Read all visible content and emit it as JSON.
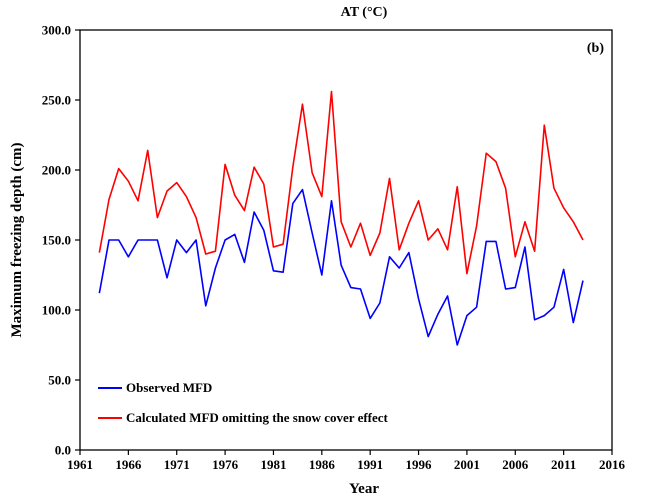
{
  "chart_data": {
    "type": "line",
    "title": "AT (°C)",
    "panel_label": "(b)",
    "xlabel": "Year",
    "ylabel": "Maximum freezing depth (cm)",
    "xlim": [
      1961,
      2016
    ],
    "ylim": [
      0,
      300
    ],
    "x_ticks": [
      1961,
      1966,
      1971,
      1976,
      1981,
      1986,
      1991,
      1996,
      2001,
      2006,
      2011,
      2016
    ],
    "y_ticks": [
      0,
      50,
      100,
      150,
      200,
      250,
      300
    ],
    "y_tick_labels": [
      "0.0",
      "50.0",
      "100.0",
      "150.0",
      "200.0",
      "250.0",
      "300.0"
    ],
    "grid": false,
    "legend_position": "bottom-left",
    "x": [
      1963,
      1964,
      1965,
      1966,
      1967,
      1968,
      1969,
      1970,
      1971,
      1972,
      1973,
      1974,
      1975,
      1976,
      1977,
      1978,
      1979,
      1980,
      1981,
      1982,
      1983,
      1984,
      1985,
      1986,
      1987,
      1988,
      1989,
      1990,
      1991,
      1992,
      1993,
      1994,
      1995,
      1996,
      1997,
      1998,
      1999,
      2000,
      2001,
      2002,
      2003,
      2004,
      2005,
      2006,
      2007,
      2008,
      2009,
      2010,
      2011,
      2012,
      2013
    ],
    "series": [
      {
        "name": "Observed MFD",
        "color": "#0000ff",
        "values": [
          112,
          150,
          150,
          138,
          150,
          150,
          150,
          123,
          150,
          141,
          150,
          103,
          130,
          150,
          154,
          134,
          170,
          157,
          128,
          127,
          176,
          186,
          155,
          125,
          178,
          132,
          116,
          115,
          94,
          105,
          138,
          130,
          141,
          108,
          81,
          97,
          110,
          75,
          96,
          102,
          149,
          149,
          115,
          116,
          145,
          93,
          96,
          102,
          129,
          91,
          121
        ]
      },
      {
        "name": "Calculated MFD omitting the snow cover effect",
        "color": "#ff0000",
        "values": [
          141,
          179,
          201,
          192,
          178,
          214,
          166,
          185,
          191,
          181,
          166,
          140,
          142,
          204,
          182,
          171,
          202,
          190,
          145,
          147,
          202,
          247,
          198,
          181,
          256,
          163,
          145,
          162,
          139,
          155,
          194,
          143,
          162,
          178,
          150,
          158,
          143,
          188,
          126,
          160,
          212,
          206,
          187,
          138,
          163,
          142,
          232,
          187,
          173,
          163,
          150
        ]
      }
    ]
  }
}
